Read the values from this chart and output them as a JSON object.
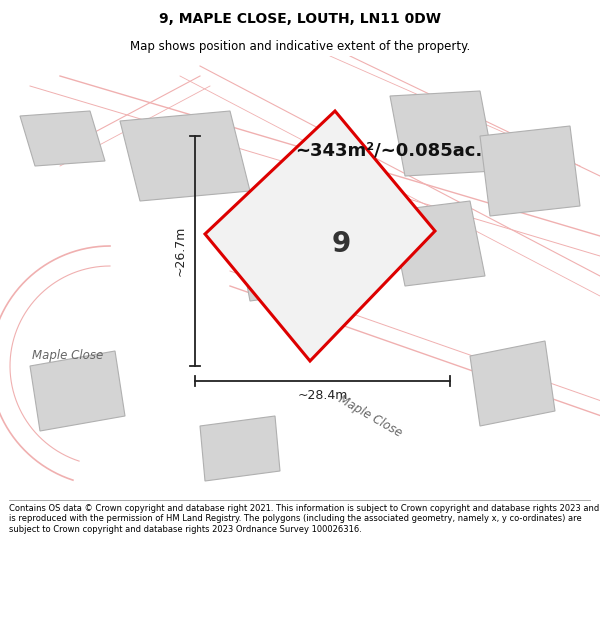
{
  "title": "9, MAPLE CLOSE, LOUTH, LN11 0DW",
  "subtitle": "Map shows position and indicative extent of the property.",
  "footer": "Contains OS data © Crown copyright and database right 2021. This information is subject to Crown copyright and database rights 2023 and is reproduced with the permission of HM Land Registry. The polygons (including the associated geometry, namely x, y co-ordinates) are subject to Crown copyright and database rights 2023 Ordnance Survey 100026316.",
  "area_text": "~343m²/~0.085ac.",
  "property_number": "9",
  "dim_width": "~28.4m",
  "dim_height": "~26.7m",
  "plot_bg": "#ffffff",
  "road_label_left": "Maple Close",
  "road_label_bottom": "Maple Close",
  "property_fill": "#f2f2f2",
  "property_edge": "#dd0000",
  "neighbor_fill": "#d4d4d4",
  "neighbor_edge": "#b0b0b0",
  "road_line_color": "#f0b0b0",
  "dim_line_color": "#222222",
  "title_fontsize": 10,
  "subtitle_fontsize": 8.5,
  "footer_fontsize": 6.0
}
